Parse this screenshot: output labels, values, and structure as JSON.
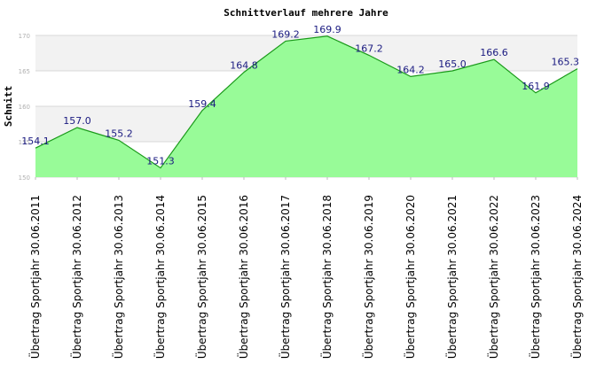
{
  "chart_data": {
    "type": "area",
    "title": "Schnittverlauf mehrere Jahre",
    "xlabel": "",
    "ylabel": "Schnitt",
    "categories": [
      "Übertrag Sportjahr 30.06.2011",
      "Übertrag Sportjahr 30.06.2012",
      "Übertrag Sportjahr 30.06.2013",
      "Übertrag Sportjahr 30.06.2014",
      "Übertrag Sportjahr 30.06.2015",
      "Übertrag Sportjahr 30.06.2016",
      "Übertrag Sportjahr 30.06.2017",
      "Übertrag Sportjahr 30.06.2018",
      "Übertrag Sportjahr 30.06.2019",
      "Übertrag Sportjahr 30.06.2020",
      "Übertrag Sportjahr 30.06.2021",
      "Übertrag Sportjahr 30.06.2022",
      "Übertrag Sportjahr 30.06.2023",
      "Übertrag Sportjahr 30.06.2024"
    ],
    "values": [
      154.1,
      157.0,
      155.2,
      151.3,
      159.4,
      164.8,
      169.2,
      169.9,
      167.2,
      164.2,
      165.0,
      166.6,
      161.9,
      165.3
    ],
    "data_labels": [
      "154.1",
      "157.0",
      "155.2",
      "151.3",
      "159.4",
      "164.8",
      "169.2",
      "169.9",
      "167.2",
      "164.2",
      "165.0",
      "166.6",
      "161.9",
      "165.3"
    ],
    "ylim": [
      150,
      170
    ],
    "yticks": [
      150,
      155,
      160,
      165,
      170
    ],
    "ytick_labels": [
      "150",
      "155",
      "160",
      "165",
      "170"
    ],
    "grid": true,
    "legend": "none",
    "colors": {
      "fill": "#98fb98",
      "line": "#1a9a1a",
      "band_a": "#f2f2f2",
      "band_b": "#ffffff",
      "label": "#1a1a80"
    }
  }
}
